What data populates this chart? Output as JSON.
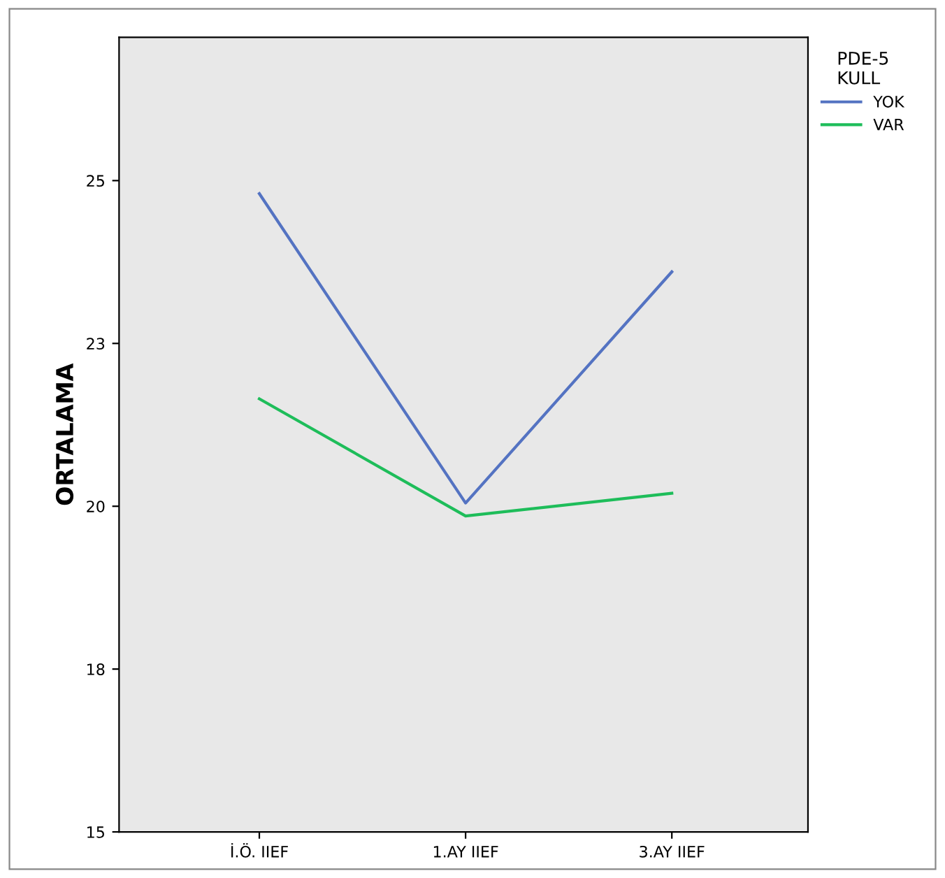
{
  "chart_data": {
    "type": "line",
    "ylabel": "ORTALAMA",
    "legend_title": "PDE-5\nKULL",
    "legend": "right",
    "grid": false,
    "categories": [
      "İ.Ö. IIEF",
      "1.AY IIEF",
      "3.AY IIEF"
    ],
    "series": [
      {
        "name": "YOK",
        "color": "#5473c2",
        "values": [
          24.8,
          20.05,
          23.6
        ]
      },
      {
        "name": "VAR",
        "color": "#1ebd5a",
        "values": [
          21.65,
          19.85,
          20.2
        ]
      }
    ],
    "ylim": [
      15,
      27.2
    ],
    "yticks": [
      15,
      {
        "value": 17.5,
        "label": "18"
      },
      20,
      {
        "value": 22.5,
        "label": "23"
      },
      25
    ]
  }
}
